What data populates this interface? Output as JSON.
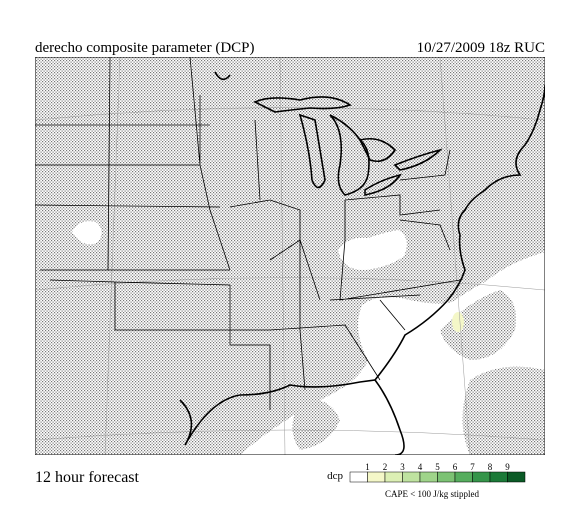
{
  "header": {
    "title": "derecho composite parameter (DCP)",
    "valid": "10/27/2009  18z  RUC"
  },
  "footer": {
    "forecast": "12 hour forecast",
    "note": "CAPE < 100 J/kg stippled"
  },
  "legend": {
    "title": "dcp",
    "labels": [
      "1",
      "2",
      "3",
      "4",
      "5",
      "6",
      "7",
      "8",
      "9"
    ],
    "colors": [
      "#ffffff",
      "#f4f7c8",
      "#dcefb4",
      "#bfe3a0",
      "#9fd48a",
      "#7cc274",
      "#56ad5e",
      "#35954a",
      "#1b7a38",
      "#0b5a26"
    ]
  }
}
